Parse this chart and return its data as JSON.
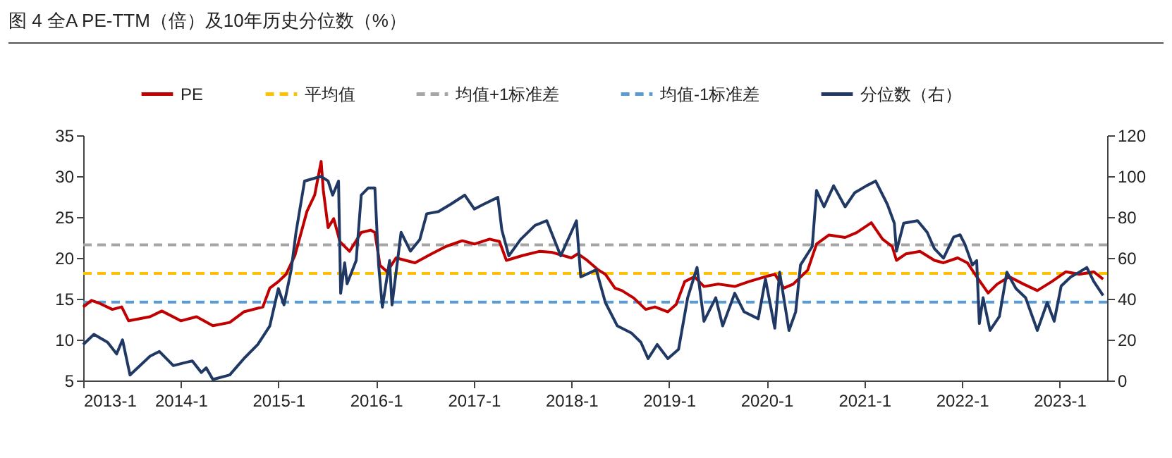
{
  "chart_data": {
    "type": "line",
    "title": "图 4  全A PE-TTM（倍）及10年历史分位数（%）",
    "legend": "top",
    "xlim": [
      "2013-01-01",
      "2023-06-28"
    ],
    "xticks": [
      {
        "value": "2013-01-01",
        "label": "2013-1"
      },
      {
        "value": "2014-01-01",
        "label": "2014-1"
      },
      {
        "value": "2015-01-01",
        "label": "2015-1"
      },
      {
        "value": "2016-01-01",
        "label": "2016-1"
      },
      {
        "value": "2017-01-01",
        "label": "2017-1"
      },
      {
        "value": "2018-01-01",
        "label": "2018-1"
      },
      {
        "value": "2019-01-01",
        "label": "2019-1"
      },
      {
        "value": "2020-01-01",
        "label": "2020-1"
      },
      {
        "value": "2021-01-01",
        "label": "2021-1"
      },
      {
        "value": "2022-01-01",
        "label": "2022-1"
      },
      {
        "value": "2023-01-01",
        "label": "2023-1"
      }
    ],
    "ylim": [
      5,
      35
    ],
    "yticks": [
      5,
      10,
      15,
      20,
      25,
      30,
      35
    ],
    "y2lim": [
      0,
      120
    ],
    "y2ticks": [
      0,
      20,
      40,
      60,
      80,
      100,
      120
    ],
    "ref_lines": [
      {
        "axis": "y",
        "value": 18.1,
        "label": "平均值",
        "color": "#ffc000",
        "line_style": "dashed"
      },
      {
        "axis": "y",
        "value": 21.6,
        "label": "均值+1标准差",
        "color": "#a5a5a5",
        "line_style": "dashed"
      },
      {
        "axis": "y",
        "value": 14.6,
        "label": "均值-1标准差",
        "color": "#5b9bd5",
        "line_style": "dashed"
      }
    ],
    "series": [
      {
        "name": "PE",
        "color": "#c00000",
        "x": [
          "2013-01-01",
          "2013-02-01",
          "2013-03-06",
          "2013-04-20",
          "2013-05-25",
          "2013-06-20",
          "2013-09-08",
          "2013-10-22",
          "2014-01-01",
          "2014-03-01",
          "2014-05-01",
          "2014-07-03",
          "2014-08-25",
          "2014-11-04",
          "2014-11-30",
          "2015-01-01",
          "2015-01-30",
          "2015-03-04",
          "2015-04-18",
          "2015-05-17",
          "2015-06-10",
          "2015-06-18",
          "2015-07-06",
          "2015-07-27",
          "2015-08-19",
          "2015-09-24",
          "2015-11-07",
          "2015-12-12",
          "2015-12-28",
          "2016-01-16",
          "2016-02-12",
          "2016-03-16",
          "2016-05-26",
          "2016-07-27",
          "2016-09-19",
          "2016-11-19",
          "2017-01-03",
          "2017-03-01",
          "2017-04-07",
          "2017-05-03",
          "2017-07-04",
          "2017-09-04",
          "2017-10-18",
          "2018-01-01",
          "2018-01-25",
          "2018-03-01",
          "2018-04-13",
          "2018-05-08",
          "2018-06-13",
          "2018-07-09",
          "2018-08-22",
          "2018-10-06",
          "2018-11-10",
          "2018-12-28",
          "2019-01-28",
          "2019-03-01",
          "2019-04-06",
          "2019-05-12",
          "2019-07-04",
          "2019-09-04",
          "2019-10-27",
          "2019-12-28",
          "2020-02-01",
          "2020-03-06",
          "2020-04-10",
          "2020-06-03",
          "2020-07-06",
          "2020-08-21",
          "2020-10-21",
          "2020-12-03",
          "2021-01-27",
          "2021-03-10",
          "2021-04-15",
          "2021-05-01",
          "2021-06-06",
          "2021-07-28",
          "2021-09-20",
          "2021-10-24",
          "2021-12-16",
          "2022-01-21",
          "2022-02-25",
          "2022-04-09",
          "2022-05-13",
          "2022-06-27",
          "2022-08-19",
          "2022-10-10",
          "2022-12-03",
          "2023-01-25",
          "2023-03-16",
          "2023-05-09",
          "2023-06-13"
        ],
        "values": [
          14.0,
          14.8,
          14.4,
          13.7,
          14.0,
          12.3,
          12.8,
          13.5,
          12.3,
          12.8,
          11.7,
          12.1,
          13.4,
          14.0,
          16.3,
          17.1,
          18.0,
          20.3,
          25.7,
          27.7,
          31.8,
          28.3,
          23.7,
          24.8,
          22.0,
          20.8,
          23.1,
          23.4,
          23.1,
          19.1,
          18.3,
          20.0,
          19.4,
          20.5,
          21.4,
          22.1,
          21.7,
          22.3,
          22.0,
          19.7,
          20.3,
          20.8,
          20.7,
          20.0,
          20.5,
          19.7,
          18.5,
          18.0,
          16.3,
          16.0,
          15.1,
          13.7,
          14.0,
          13.4,
          14.3,
          17.1,
          17.7,
          16.5,
          16.8,
          16.5,
          17.1,
          17.7,
          18.0,
          16.3,
          16.8,
          18.5,
          21.7,
          22.8,
          22.5,
          23.1,
          24.3,
          22.3,
          21.4,
          19.7,
          20.5,
          20.8,
          19.7,
          19.4,
          20.0,
          19.4,
          17.7,
          15.7,
          16.8,
          17.7,
          16.8,
          16.0,
          17.1,
          18.3,
          18.0,
          18.3,
          17.4
        ]
      },
      {
        "name": "分位数（右）",
        "color": "#203864",
        "axis": "y2",
        "x": [
          "2013-01-01",
          "2013-02-10",
          "2013-04-02",
          "2013-05-06",
          "2013-05-28",
          "2013-06-25",
          "2013-09-08",
          "2013-10-13",
          "2013-12-04",
          "2014-02-13",
          "2014-03-19",
          "2014-04-06",
          "2014-05-01",
          "2014-07-03",
          "2014-08-25",
          "2014-10-16",
          "2014-11-30",
          "2015-01-01",
          "2015-01-22",
          "2015-02-18",
          "2015-03-08",
          "2015-04-09",
          "2015-06-10",
          "2015-07-06",
          "2015-07-23",
          "2015-08-14",
          "2015-08-22",
          "2015-09-06",
          "2015-09-15",
          "2015-10-19",
          "2015-11-07",
          "2015-12-03",
          "2015-12-28",
          "2016-01-11",
          "2016-01-25",
          "2016-02-21",
          "2016-03-01",
          "2016-04-04",
          "2016-05-09",
          "2016-06-13",
          "2016-07-09",
          "2016-08-22",
          "2016-10-06",
          "2016-11-28",
          "2017-01-03",
          "2017-02-06",
          "2017-04-01",
          "2017-04-16",
          "2017-05-12",
          "2017-06-25",
          "2017-08-18",
          "2017-10-01",
          "2017-11-22",
          "2018-01-20",
          "2018-02-05",
          "2018-04-04",
          "2018-05-08",
          "2018-06-22",
          "2018-08-13",
          "2018-09-18",
          "2018-10-15",
          "2018-11-18",
          "2018-12-28",
          "2019-02-06",
          "2019-03-12",
          "2019-04-16",
          "2019-05-12",
          "2019-06-25",
          "2019-07-21",
          "2019-09-04",
          "2019-10-09",
          "2019-12-01",
          "2019-12-28",
          "2020-02-01",
          "2020-02-19",
          "2020-03-25",
          "2020-04-19",
          "2020-05-07",
          "2020-06-20",
          "2020-07-06",
          "2020-08-03",
          "2020-09-08",
          "2020-10-21",
          "2020-11-26",
          "2021-01-09",
          "2021-02-12",
          "2021-03-28",
          "2021-04-23",
          "2021-05-01",
          "2021-05-28",
          "2021-07-19",
          "2021-08-24",
          "2021-09-20",
          "2021-10-24",
          "2021-12-01",
          "2021-12-25",
          "2022-01-12",
          "2022-02-09",
          "2022-02-25",
          "2022-03-07",
          "2022-03-21",
          "2022-04-16",
          "2022-05-21",
          "2022-06-18",
          "2022-07-22",
          "2022-08-27",
          "2022-10-10",
          "2022-11-16",
          "2022-12-12",
          "2023-01-07",
          "2023-02-12",
          "2023-03-16",
          "2023-04-13",
          "2023-05-09",
          "2023-06-13"
        ],
        "values": [
          17.6,
          22.6,
          18.7,
          13.0,
          19.9,
          2.7,
          11.9,
          14.2,
          7.3,
          9.6,
          3.9,
          6.2,
          0.5,
          2.7,
          10.7,
          17.6,
          26.7,
          45.0,
          37.0,
          54.2,
          72.5,
          97.6,
          99.9,
          97.6,
          90.7,
          97.6,
          42.7,
          57.6,
          47.3,
          58.7,
          90.7,
          94.2,
          94.2,
          56.5,
          35.9,
          58.7,
          37.0,
          72.5,
          63.3,
          69.0,
          81.6,
          82.7,
          86.2,
          90.7,
          83.9,
          86.2,
          89.6,
          73.6,
          61.0,
          69.0,
          75.9,
          78.2,
          61.0,
          78.2,
          50.7,
          54.2,
          38.2,
          26.7,
          23.3,
          18.7,
          10.7,
          17.6,
          10.7,
          15.3,
          40.5,
          55.3,
          29.0,
          40.5,
          26.7,
          42.7,
          33.6,
          30.2,
          49.6,
          25.6,
          53.0,
          24.5,
          33.6,
          56.5,
          65.6,
          93.0,
          85.0,
          95.3,
          85.0,
          91.9,
          95.3,
          97.6,
          86.2,
          77.0,
          63.3,
          77.0,
          78.2,
          72.5,
          64.5,
          59.9,
          70.2,
          71.3,
          66.7,
          56.5,
          58.7,
          27.9,
          40.5,
          24.5,
          31.3,
          53.0,
          45.0,
          40.5,
          24.5,
          38.2,
          29.0,
          46.2,
          50.7,
          53.0,
          55.3,
          48.5,
          41.6
        ]
      }
    ]
  }
}
